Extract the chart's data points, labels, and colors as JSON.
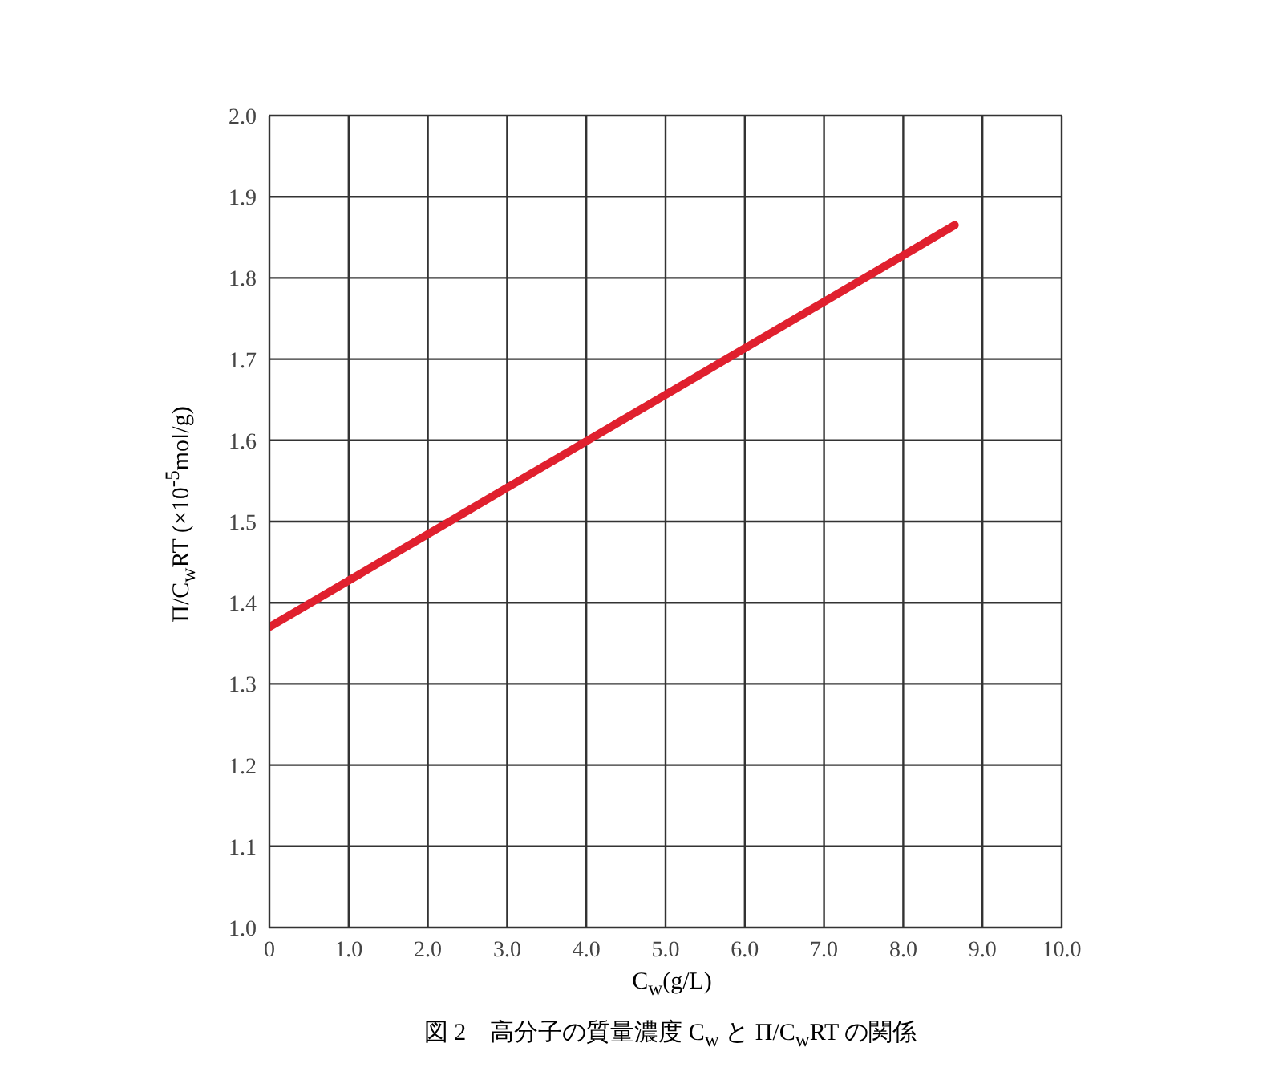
{
  "chart_data": {
    "type": "line",
    "xlabel": "C$_{w}$(g/L)",
    "ylabel": "Π/C$_{w}$RT (×10$^{-5}$mol/g)",
    "annotations": [
      "図 2　高分子の質量濃度 C$_{w}$ と Π/C$_{w}$RT の関係"
    ],
    "series": [
      {
        "color": "#e0202e",
        "x": [
          0,
          8.65
        ],
        "values": [
          1.37,
          1.865
        ]
      }
    ],
    "xlim": [
      0,
      10
    ],
    "ylim": [
      1.0,
      2.0
    ],
    "xticks": [
      0,
      {
        "value": 1,
        "label": "1.0"
      },
      {
        "value": 2,
        "label": "2.0"
      },
      {
        "value": 3,
        "label": "3.0"
      },
      {
        "value": 4,
        "label": "4.0"
      },
      {
        "value": 5,
        "label": "5.0"
      },
      {
        "value": 6,
        "label": "6.0"
      },
      {
        "value": 7,
        "label": "7.0"
      },
      {
        "value": 8,
        "label": "8.0"
      },
      {
        "value": 9,
        "label": "9.0"
      },
      {
        "value": 10,
        "label": "10.0"
      }
    ],
    "yticks": [
      {
        "value": 1,
        "label": "1.0"
      },
      1.1,
      1.2,
      1.3,
      1.4,
      1.5,
      1.6,
      1.7,
      1.8,
      1.9,
      {
        "value": 2,
        "label": "2.0"
      }
    ],
    "grid": true,
    "marker": "none",
    "line_style": "solid",
    "legend": false
  }
}
